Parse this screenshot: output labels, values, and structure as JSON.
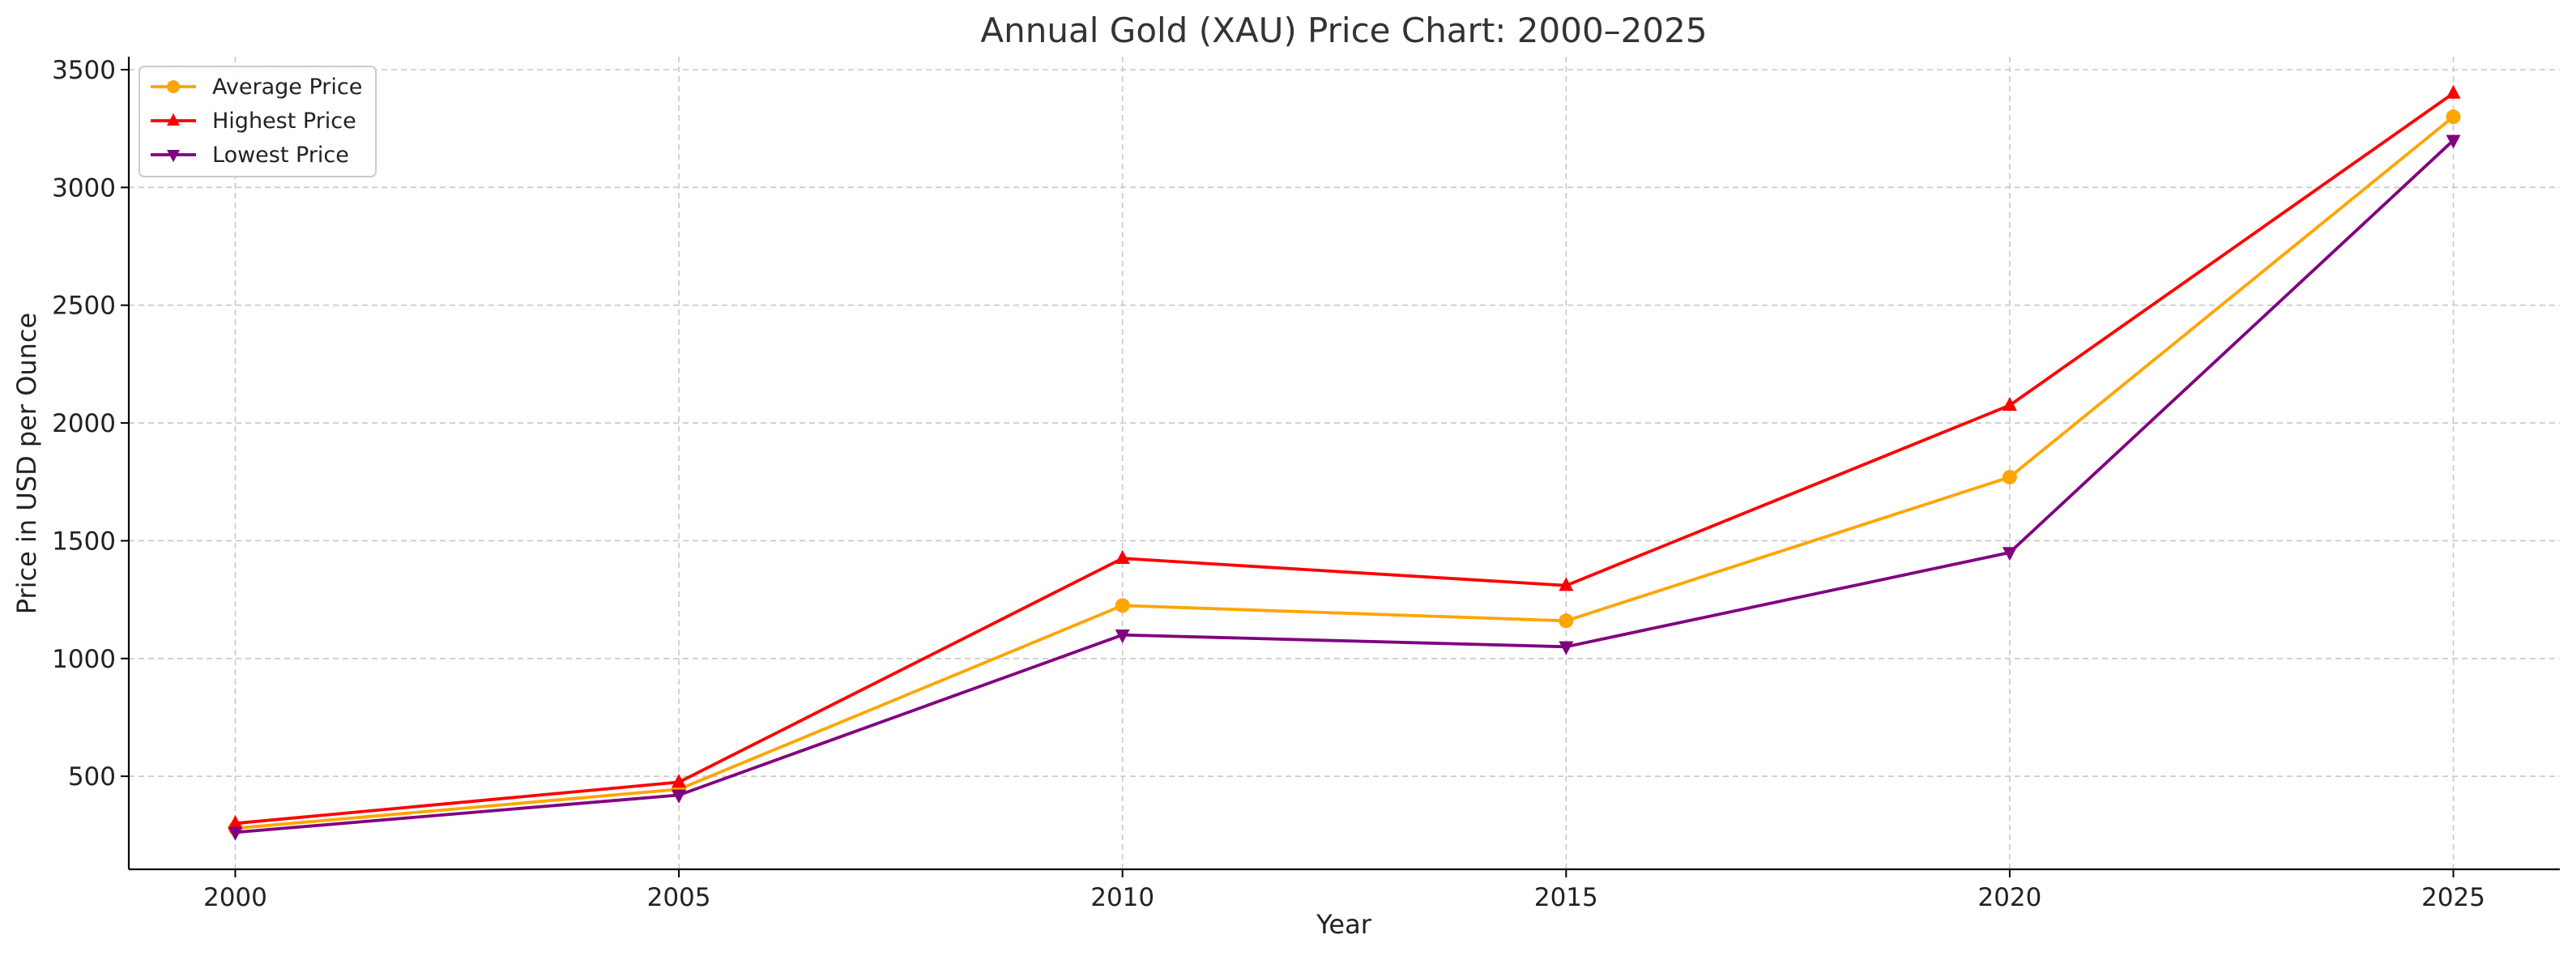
{
  "chart_data": {
    "type": "line",
    "title": "Annual Gold (XAU) Price Chart: 2000–2025",
    "xlabel": "Year",
    "ylabel": "Price in USD per Ounce",
    "x": [
      2000,
      2005,
      2010,
      2015,
      2020,
      2025
    ],
    "xlim": [
      1998.8,
      2026.2
    ],
    "ylim": [
      105,
      3555
    ],
    "xticks": [
      2000,
      2005,
      2010,
      2015,
      2020,
      2025
    ],
    "yticks": [
      500,
      1000,
      1500,
      2000,
      2500,
      3000,
      3500
    ],
    "grid": true,
    "legend_position": "top-left",
    "series": [
      {
        "name": "Average Price",
        "color": "#ffa500",
        "marker": "circle",
        "values": [
          279,
          445,
          1225,
          1160,
          1770,
          3300
        ]
      },
      {
        "name": "Highest Price",
        "color": "#ff0000",
        "marker": "triangle-up",
        "values": [
          300,
          475,
          1425,
          1310,
          2075,
          3400
        ]
      },
      {
        "name": "Lowest Price",
        "color": "#800080",
        "marker": "triangle-down",
        "values": [
          262,
          420,
          1100,
          1050,
          1450,
          3200
        ]
      }
    ]
  }
}
